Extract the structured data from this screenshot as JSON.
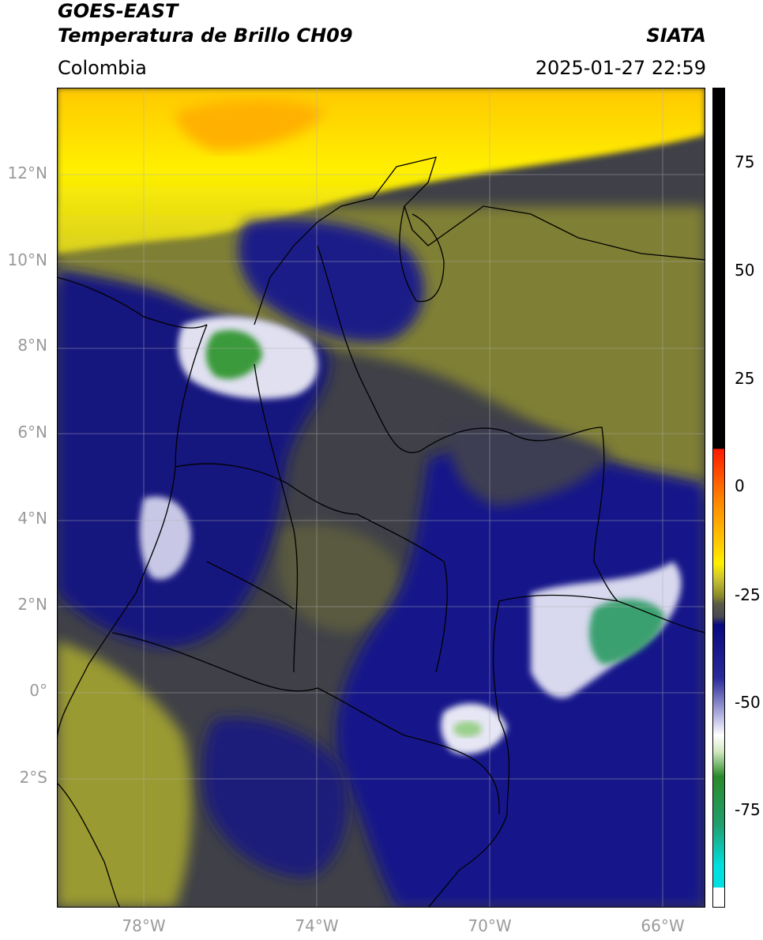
{
  "header": {
    "title_line1": "GOES-EAST",
    "title_line2": "Temperatura de Brillo CH09",
    "region": "Colombia",
    "source": "SIATA",
    "datetime": "2025-01-27 22:59"
  },
  "map": {
    "lon_range": [
      -80,
      -65
    ],
    "lat_range": [
      -5,
      14
    ],
    "grid": true,
    "lat_ticks": [
      {
        "value": 12,
        "label": "12°N"
      },
      {
        "value": 10,
        "label": "10°N"
      },
      {
        "value": 8,
        "label": "8°N"
      },
      {
        "value": 6,
        "label": "6°N"
      },
      {
        "value": 4,
        "label": "4°N"
      },
      {
        "value": 2,
        "label": "2°N"
      },
      {
        "value": 0,
        "label": "0°"
      },
      {
        "value": -2,
        "label": "2°S"
      }
    ],
    "lon_ticks": [
      {
        "value": -78,
        "label": "78°W"
      },
      {
        "value": -74,
        "label": "74°W"
      },
      {
        "value": -70,
        "label": "70°W"
      },
      {
        "value": -66,
        "label": "66°W"
      }
    ]
  },
  "colorbar": {
    "range": [
      -100,
      90
    ],
    "ticks": [
      {
        "value": 75,
        "label": "75"
      },
      {
        "value": 50,
        "label": "50"
      },
      {
        "value": 25,
        "label": "25"
      },
      {
        "value": 0,
        "label": "0"
      },
      {
        "value": -25,
        "label": "-25"
      },
      {
        "value": -50,
        "label": "-50"
      },
      {
        "value": -75,
        "label": "-75"
      }
    ],
    "colors": {
      "black": "#000000",
      "red": "#ff1a00",
      "orange": "#ff9900",
      "yellow": "#fff000",
      "olive": "#8a8a2a",
      "gray": "#4a4a52",
      "navy": "#0a0a80",
      "white": "#ffffff",
      "green": "#2a8a2a",
      "cyan": "#00e0e0"
    }
  }
}
